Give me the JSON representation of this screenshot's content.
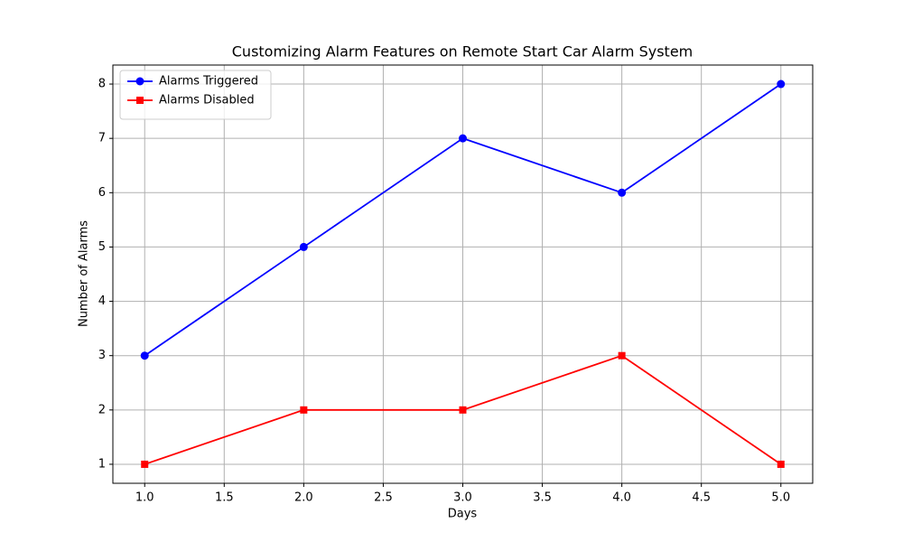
{
  "chart_data": {
    "type": "line",
    "title": "Customizing Alarm Features on Remote Start Car Alarm System",
    "xlabel": "Days",
    "ylabel": "Number of Alarms",
    "x": [
      1,
      2,
      3,
      4,
      5
    ],
    "series": [
      {
        "name": "Alarms Triggered",
        "color": "#0000ff",
        "marker": "circle",
        "values": [
          3,
          5,
          7,
          6,
          8
        ]
      },
      {
        "name": "Alarms Disabled",
        "color": "#ff0000",
        "marker": "square",
        "values": [
          1,
          2,
          2,
          3,
          1
        ]
      }
    ],
    "xlim": [
      0.8,
      5.2
    ],
    "xticks": [
      {
        "value": 1,
        "label": "1.0"
      },
      {
        "value": 1.5,
        "label": "1.5"
      },
      {
        "value": 2,
        "label": "2.0"
      },
      {
        "value": 2.5,
        "label": "2.5"
      },
      {
        "value": 3,
        "label": "3.0"
      },
      {
        "value": 3.5,
        "label": "3.5"
      },
      {
        "value": 4,
        "label": "4.0"
      },
      {
        "value": 4.5,
        "label": "4.5"
      },
      {
        "value": 5,
        "label": "5.0"
      }
    ],
    "ylim": [
      0.65,
      8.35
    ],
    "yticks": [
      1,
      2,
      3,
      4,
      5,
      6,
      7,
      8
    ],
    "grid": true,
    "legend": "upper left"
  }
}
